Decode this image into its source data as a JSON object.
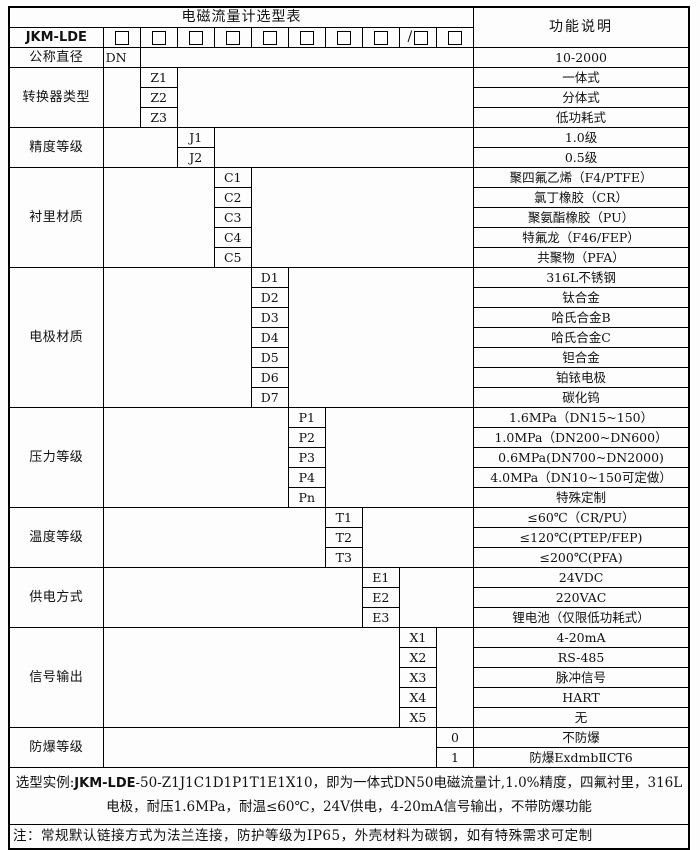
{
  "header": {
    "title": "电磁流量计选型表",
    "right_title": "功能说明",
    "model": "JKM-LDE",
    "checkboxes": [
      {
        "prefix": ""
      },
      {
        "prefix": ""
      },
      {
        "prefix": ""
      },
      {
        "prefix": ""
      },
      {
        "prefix": ""
      },
      {
        "prefix": ""
      },
      {
        "prefix": ""
      },
      {
        "prefix": ""
      },
      {
        "prefix": "/"
      },
      {
        "prefix": ""
      }
    ]
  },
  "sections": [
    {
      "id": "nominal-diameter",
      "label": "公称直径",
      "rows": [
        {
          "code": "DN",
          "desc": "10-2000"
        }
      ]
    },
    {
      "id": "converter-type",
      "label": "转换器类型",
      "rows": [
        {
          "code": "Z1",
          "desc": "一体式"
        },
        {
          "code": "Z2",
          "desc": "分体式"
        },
        {
          "code": "Z3",
          "desc": "低功耗式"
        }
      ]
    },
    {
      "id": "accuracy-class",
      "label": "精度等级",
      "rows": [
        {
          "code": "J1",
          "desc": "1.0级"
        },
        {
          "code": "J2",
          "desc": "0.5级"
        }
      ]
    },
    {
      "id": "liner-material",
      "label": "衬里材质",
      "rows": [
        {
          "code": "C1",
          "desc": "聚四氟乙烯（F4/PTFE）"
        },
        {
          "code": "C2",
          "desc": "氯丁橡胶（CR）"
        },
        {
          "code": "C3",
          "desc": "聚氨酯橡胶（PU）"
        },
        {
          "code": "C4",
          "desc": "特氟龙（F46/FEP）"
        },
        {
          "code": "C5",
          "desc": "共聚物（PFA）"
        }
      ]
    },
    {
      "id": "electrode-material",
      "label": "电极材质",
      "rows": [
        {
          "code": "D1",
          "desc": "316L不锈钢"
        },
        {
          "code": "D2",
          "desc": "钛合金"
        },
        {
          "code": "D3",
          "desc": "哈氏合金B"
        },
        {
          "code": "D4",
          "desc": "哈氏合金C"
        },
        {
          "code": "D5",
          "desc": "钽合金"
        },
        {
          "code": "D6",
          "desc": "铂铱电极"
        },
        {
          "code": "D7",
          "desc": "碳化钨"
        }
      ]
    },
    {
      "id": "pressure-rating",
      "label": "压力等级",
      "rows": [
        {
          "code": "P1",
          "desc": "1.6MPa（DN15~150）"
        },
        {
          "code": "P2",
          "desc": "1.0MPa（DN200~DN600）"
        },
        {
          "code": "P3",
          "desc": "0.6MPa(DN700~DN2000)"
        },
        {
          "code": "P4",
          "desc": "4.0MPa（DN10~150可定做）"
        },
        {
          "code": "Pn",
          "desc": "特殊定制"
        }
      ]
    },
    {
      "id": "temperature-rating",
      "label": "温度等级",
      "rows": [
        {
          "code": "T1",
          "desc": "≤60℃（CR/PU）"
        },
        {
          "code": "T2",
          "desc": "≤120℃(PTEP/FEP)"
        },
        {
          "code": "T3",
          "desc": "≤200℃(PFA)"
        }
      ]
    },
    {
      "id": "power-supply",
      "label": "供电方式",
      "rows": [
        {
          "code": "E1",
          "desc": "24VDC"
        },
        {
          "code": "E2",
          "desc": "220VAC"
        },
        {
          "code": "E3",
          "desc": "锂电池（仅限低功耗式）"
        }
      ]
    },
    {
      "id": "signal-output",
      "label": "信号输出",
      "rows": [
        {
          "code": "X1",
          "desc": "4-20mA"
        },
        {
          "code": "X2",
          "desc": "RS-485"
        },
        {
          "code": "X3",
          "desc": "脉冲信号"
        },
        {
          "code": "X4",
          "desc": "HART"
        },
        {
          "code": "X5",
          "desc": "无"
        }
      ]
    },
    {
      "id": "explosion-proof",
      "label": "防爆等级",
      "rows": [
        {
          "code": "0",
          "desc": "不防爆"
        },
        {
          "code": "1",
          "desc": "防爆ExdmbⅡCT6"
        }
      ]
    }
  ],
  "footer": {
    "example_prefix": "选型实例:",
    "example_model": "JKM-LDE",
    "example_rest": "-50-Z1J1C1D1P1T1E1X10，即为一体式DN50电磁流量计,1.0%精度，四氟衬里，316L电极，耐压1.6MPa，耐温≤60℃，24V供电，4-20mA信号输出，不带防爆功能",
    "note": "注：常规默认链接方式为法兰连接，防护等级为IP65，外壳材料为碳钢，如有特殊需求可定制"
  }
}
